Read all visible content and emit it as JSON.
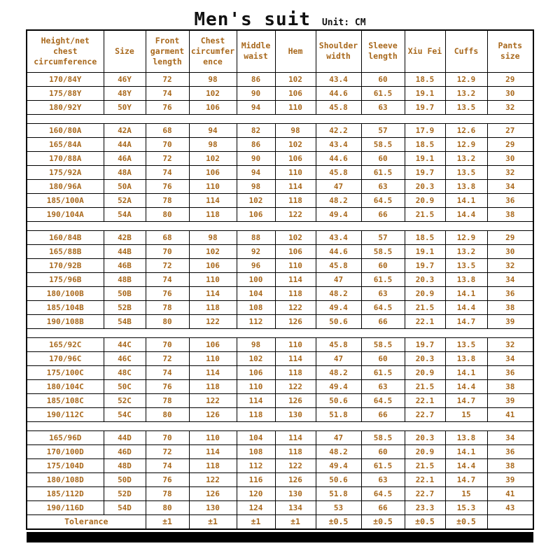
{
  "title": "Men's suit",
  "unit_label": "Unit: CM",
  "colors": {
    "text": "#a8681c",
    "title_text": "#111111",
    "border": "#000000",
    "background": "#ffffff"
  },
  "chart_data": {
    "type": "table",
    "title": "Men's suit",
    "unit": "CM",
    "columns": [
      "Height/net chest circumference",
      "Size",
      "Front garment length",
      "Chest circumference",
      "Middle waist",
      "Hem",
      "Shoulder width",
      "Sleeve length",
      "Xiu Fei",
      "Cuffs",
      "Pants size"
    ],
    "groups": [
      [
        [
          "170/84Y",
          "46Y",
          "72",
          "98",
          "86",
          "102",
          "43.4",
          "60",
          "18.5",
          "12.9",
          "29"
        ],
        [
          "175/88Y",
          "48Y",
          "74",
          "102",
          "90",
          "106",
          "44.6",
          "61.5",
          "19.1",
          "13.2",
          "30"
        ],
        [
          "180/92Y",
          "50Y",
          "76",
          "106",
          "94",
          "110",
          "45.8",
          "63",
          "19.7",
          "13.5",
          "32"
        ]
      ],
      [
        [
          "160/80A",
          "42A",
          "68",
          "94",
          "82",
          "98",
          "42.2",
          "57",
          "17.9",
          "12.6",
          "27"
        ],
        [
          "165/84A",
          "44A",
          "70",
          "98",
          "86",
          "102",
          "43.4",
          "58.5",
          "18.5",
          "12.9",
          "29"
        ],
        [
          "170/88A",
          "46A",
          "72",
          "102",
          "90",
          "106",
          "44.6",
          "60",
          "19.1",
          "13.2",
          "30"
        ],
        [
          "175/92A",
          "48A",
          "74",
          "106",
          "94",
          "110",
          "45.8",
          "61.5",
          "19.7",
          "13.5",
          "32"
        ],
        [
          "180/96A",
          "50A",
          "76",
          "110",
          "98",
          "114",
          "47",
          "63",
          "20.3",
          "13.8",
          "34"
        ],
        [
          "185/100A",
          "52A",
          "78",
          "114",
          "102",
          "118",
          "48.2",
          "64.5",
          "20.9",
          "14.1",
          "36"
        ],
        [
          "190/104A",
          "54A",
          "80",
          "118",
          "106",
          "122",
          "49.4",
          "66",
          "21.5",
          "14.4",
          "38"
        ]
      ],
      [
        [
          "160/84B",
          "42B",
          "68",
          "98",
          "88",
          "102",
          "43.4",
          "57",
          "18.5",
          "12.9",
          "29"
        ],
        [
          "165/88B",
          "44B",
          "70",
          "102",
          "92",
          "106",
          "44.6",
          "58.5",
          "19.1",
          "13.2",
          "30"
        ],
        [
          "170/92B",
          "46B",
          "72",
          "106",
          "96",
          "110",
          "45.8",
          "60",
          "19.7",
          "13.5",
          "32"
        ],
        [
          "175/96B",
          "48B",
          "74",
          "110",
          "100",
          "114",
          "47",
          "61.5",
          "20.3",
          "13.8",
          "34"
        ],
        [
          "180/100B",
          "50B",
          "76",
          "114",
          "104",
          "118",
          "48.2",
          "63",
          "20.9",
          "14.1",
          "36"
        ],
        [
          "185/104B",
          "52B",
          "78",
          "118",
          "108",
          "122",
          "49.4",
          "64.5",
          "21.5",
          "14.4",
          "38"
        ],
        [
          "190/108B",
          "54B",
          "80",
          "122",
          "112",
          "126",
          "50.6",
          "66",
          "22.1",
          "14.7",
          "39"
        ]
      ],
      [
        [
          "165/92C",
          "44C",
          "70",
          "106",
          "98",
          "110",
          "45.8",
          "58.5",
          "19.7",
          "13.5",
          "32"
        ],
        [
          "170/96C",
          "46C",
          "72",
          "110",
          "102",
          "114",
          "47",
          "60",
          "20.3",
          "13.8",
          "34"
        ],
        [
          "175/100C",
          "48C",
          "74",
          "114",
          "106",
          "118",
          "48.2",
          "61.5",
          "20.9",
          "14.1",
          "36"
        ],
        [
          "180/104C",
          "50C",
          "76",
          "118",
          "110",
          "122",
          "49.4",
          "63",
          "21.5",
          "14.4",
          "38"
        ],
        [
          "185/108C",
          "52C",
          "78",
          "122",
          "114",
          "126",
          "50.6",
          "64.5",
          "22.1",
          "14.7",
          "39"
        ],
        [
          "190/112C",
          "54C",
          "80",
          "126",
          "118",
          "130",
          "51.8",
          "66",
          "22.7",
          "15",
          "41"
        ]
      ],
      [
        [
          "165/96D",
          "44D",
          "70",
          "110",
          "104",
          "114",
          "47",
          "58.5",
          "20.3",
          "13.8",
          "34"
        ],
        [
          "170/100D",
          "46D",
          "72",
          "114",
          "108",
          "118",
          "48.2",
          "60",
          "20.9",
          "14.1",
          "36"
        ],
        [
          "175/104D",
          "48D",
          "74",
          "118",
          "112",
          "122",
          "49.4",
          "61.5",
          "21.5",
          "14.4",
          "38"
        ],
        [
          "180/108D",
          "50D",
          "76",
          "122",
          "116",
          "126",
          "50.6",
          "63",
          "22.1",
          "14.7",
          "39"
        ],
        [
          "185/112D",
          "52D",
          "78",
          "126",
          "120",
          "130",
          "51.8",
          "64.5",
          "22.7",
          "15",
          "41"
        ],
        [
          "190/116D",
          "54D",
          "80",
          "130",
          "124",
          "134",
          "53",
          "66",
          "23.3",
          "15.3",
          "43"
        ]
      ]
    ],
    "tolerance": {
      "label": "Tolerance",
      "values": [
        "±1",
        "±1",
        "±1",
        "±1",
        "±0.5",
        "±0.5",
        "±0.5",
        "±0.5",
        ""
      ]
    }
  }
}
